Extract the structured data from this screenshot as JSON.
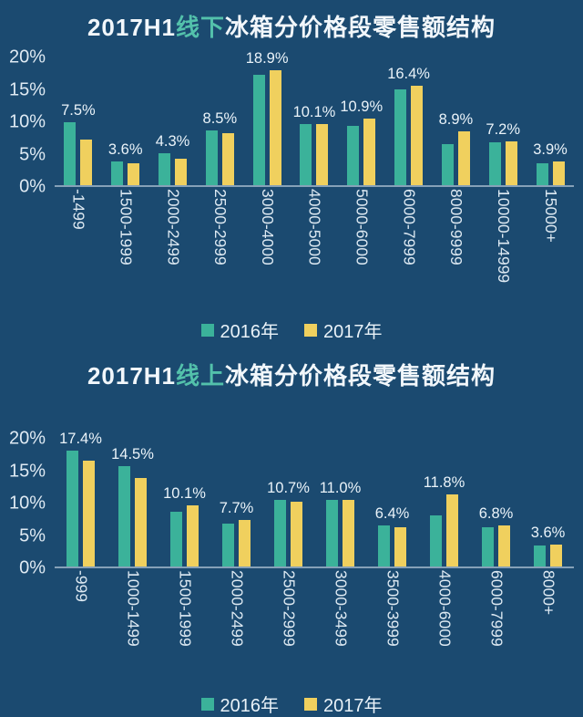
{
  "page": {
    "background": "#1b4a70"
  },
  "colors": {
    "background": "#1b4a70",
    "teal": "#3bb29a",
    "yellow": "#f0d05e",
    "title_highlight": "#53c1ab",
    "text": "#e9f2f8",
    "axis_line": "rgba(222,234,244,0.55)"
  },
  "chart_data": [
    {
      "type": "bar",
      "title": "2017H1线下冰箱分价格段零售额结构",
      "title_parts": {
        "prefix": "2017H1",
        "highlight": "线下",
        "suffix": "冰箱分价格段零售额结构"
      },
      "categories": [
        "-1499",
        "1500-1999",
        "2000-2499",
        "2500-2999",
        "3000-4000",
        "4000-5000",
        "5000-6000",
        "6000-7999",
        "8000-9999",
        "10000-14999",
        "15000+"
      ],
      "series": [
        {
          "name": "2016年",
          "color": "#3bb29a",
          "values": [
            10.4,
            3.9,
            5.2,
            9.0,
            18.1,
            10.0,
            9.7,
            15.8,
            6.8,
            7.0,
            3.6
          ]
        },
        {
          "name": "2017年",
          "color": "#f0d05e",
          "values": [
            7.5,
            3.6,
            4.3,
            8.5,
            18.9,
            10.1,
            10.9,
            16.4,
            8.9,
            7.2,
            3.9
          ]
        }
      ],
      "bar_labels": [
        "7.5%",
        "3.6%",
        "4.3%",
        "8.5%",
        "18.9%",
        "10.1%",
        "10.9%",
        "16.4%",
        "8.9%",
        "7.2%",
        "3.9%"
      ],
      "yticks": [
        "20%",
        "15%",
        "10%",
        "5%",
        "0%"
      ],
      "ylabel": "",
      "xlabel": "",
      "ylim": [
        0,
        21
      ],
      "grid": false,
      "legend_position": "bottom"
    },
    {
      "type": "bar",
      "title": "2017H1线上冰箱分价格段零售额结构",
      "title_parts": {
        "prefix": "2017H1",
        "highlight": "线上",
        "suffix": "冰箱分价格段零售额结构"
      },
      "categories": [
        "-999",
        "1000-1499",
        "1500-1999",
        "2000-2499",
        "2500-2999",
        "3000-3499",
        "3500-3999",
        "4000-6000",
        "6000-7999",
        "8000+"
      ],
      "series": [
        {
          "name": "2016年",
          "color": "#3bb29a",
          "values": [
            19.0,
            16.5,
            9.0,
            7.0,
            11.0,
            10.9,
            6.7,
            8.4,
            6.5,
            3.4
          ]
        },
        {
          "name": "2017年",
          "color": "#f0d05e",
          "values": [
            17.4,
            14.5,
            10.1,
            7.7,
            10.7,
            11.0,
            6.4,
            11.8,
            6.8,
            3.6
          ]
        }
      ],
      "bar_labels": [
        "17.4%",
        "14.5%",
        "10.1%",
        "7.7%",
        "10.7%",
        "11.0%",
        "6.4%",
        "11.8%",
        "6.8%",
        "3.6%"
      ],
      "yticks": [
        "20%",
        "15%",
        "10%",
        "5%",
        "0%"
      ],
      "ylabel": "",
      "xlabel": "",
      "ylim": [
        0,
        21
      ],
      "grid": false,
      "legend_position": "bottom"
    }
  ]
}
